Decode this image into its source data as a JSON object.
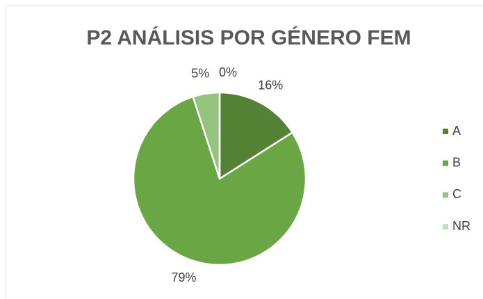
{
  "chart_data": {
    "type": "pie",
    "title": "P2 ANÁLISIS POR GÉNERO FEM",
    "categories": [
      "A",
      "B",
      "C",
      "NR"
    ],
    "values": [
      16,
      79,
      5,
      0
    ],
    "value_labels": [
      "16%",
      "79%",
      "5%",
      "0%"
    ],
    "colors": [
      "#548235",
      "#6aa744",
      "#93c47d",
      "#c5e0b4"
    ],
    "legend": "right"
  }
}
